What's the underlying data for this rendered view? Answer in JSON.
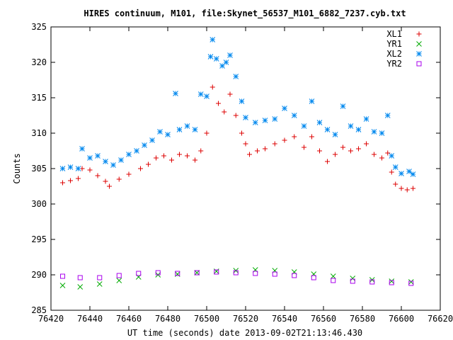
{
  "chart_data": {
    "type": "scatter",
    "title": "HIRES continuum, M101, file:Skynet_56537_M101_6882_7237.cyb.txt",
    "xlabel": "UT time (seconds) date 2013-09-02T21:13:46.430",
    "ylabel": "Counts",
    "xlim": [
      76420,
      76620
    ],
    "ylim": [
      285,
      325
    ],
    "xticks": [
      76420,
      76440,
      76460,
      76480,
      76500,
      76520,
      76540,
      76560,
      76580,
      76600,
      76620
    ],
    "yticks": [
      285,
      290,
      295,
      300,
      305,
      310,
      315,
      320,
      325
    ],
    "grid": false,
    "legend_position": "top-right",
    "series": [
      {
        "name": "XL1",
        "marker": "plus",
        "color": "#dd0000",
        "points": [
          [
            76426,
            303.0
          ],
          [
            76430,
            303.3
          ],
          [
            76434,
            303.6
          ],
          [
            76436,
            305.0
          ],
          [
            76440,
            304.8
          ],
          [
            76444,
            304.0
          ],
          [
            76448,
            303.2
          ],
          [
            76450,
            302.5
          ],
          [
            76455,
            303.5
          ],
          [
            76460,
            304.2
          ],
          [
            76466,
            305.0
          ],
          [
            76470,
            305.6
          ],
          [
            76474,
            306.5
          ],
          [
            76478,
            306.8
          ],
          [
            76482,
            306.2
          ],
          [
            76486,
            307.0
          ],
          [
            76490,
            306.8
          ],
          [
            76494,
            306.2
          ],
          [
            76497,
            307.5
          ],
          [
            76500,
            310.0
          ],
          [
            76503,
            316.5
          ],
          [
            76506,
            314.2
          ],
          [
            76509,
            313.0
          ],
          [
            76512,
            315.5
          ],
          [
            76515,
            312.5
          ],
          [
            76518,
            310.0
          ],
          [
            76520,
            308.5
          ],
          [
            76522,
            307.0
          ],
          [
            76526,
            307.5
          ],
          [
            76530,
            307.8
          ],
          [
            76535,
            308.5
          ],
          [
            76540,
            309.0
          ],
          [
            76545,
            309.5
          ],
          [
            76550,
            308.0
          ],
          [
            76554,
            309.5
          ],
          [
            76558,
            307.5
          ],
          [
            76562,
            306.0
          ],
          [
            76566,
            307.0
          ],
          [
            76570,
            308.0
          ],
          [
            76574,
            307.5
          ],
          [
            76578,
            307.8
          ],
          [
            76582,
            308.5
          ],
          [
            76586,
            307.0
          ],
          [
            76590,
            306.5
          ],
          [
            76593,
            307.2
          ],
          [
            76595,
            304.5
          ],
          [
            76597,
            302.8
          ],
          [
            76600,
            302.2
          ],
          [
            76603,
            302.0
          ],
          [
            76606,
            302.2
          ]
        ]
      },
      {
        "name": "YR1",
        "marker": "cross",
        "color": "#00aa00",
        "points": [
          [
            76426,
            288.5
          ],
          [
            76435,
            288.3
          ],
          [
            76445,
            288.7
          ],
          [
            76455,
            289.2
          ],
          [
            76465,
            289.7
          ],
          [
            76475,
            290.0
          ],
          [
            76485,
            290.1
          ],
          [
            76495,
            290.3
          ],
          [
            76505,
            290.5
          ],
          [
            76515,
            290.6
          ],
          [
            76525,
            290.7
          ],
          [
            76535,
            290.6
          ],
          [
            76545,
            290.4
          ],
          [
            76555,
            290.1
          ],
          [
            76565,
            289.8
          ],
          [
            76575,
            289.5
          ],
          [
            76585,
            289.3
          ],
          [
            76595,
            289.1
          ],
          [
            76605,
            289.0
          ]
        ]
      },
      {
        "name": "XL2",
        "marker": "star",
        "color": "#0088ee",
        "points": [
          [
            76426,
            305.0
          ],
          [
            76430,
            305.2
          ],
          [
            76434,
            305.0
          ],
          [
            76436,
            307.8
          ],
          [
            76440,
            306.5
          ],
          [
            76444,
            306.8
          ],
          [
            76448,
            306.0
          ],
          [
            76452,
            305.5
          ],
          [
            76456,
            306.2
          ],
          [
            76460,
            307.0
          ],
          [
            76464,
            307.5
          ],
          [
            76468,
            308.3
          ],
          [
            76472,
            309.0
          ],
          [
            76476,
            310.2
          ],
          [
            76480,
            309.8
          ],
          [
            76484,
            315.6
          ],
          [
            76486,
            310.5
          ],
          [
            76490,
            311.0
          ],
          [
            76494,
            310.5
          ],
          [
            76497,
            315.5
          ],
          [
            76500,
            315.2
          ],
          [
            76502,
            320.8
          ],
          [
            76503,
            323.2
          ],
          [
            76505,
            320.5
          ],
          [
            76508,
            319.5
          ],
          [
            76510,
            320.0
          ],
          [
            76512,
            321.0
          ],
          [
            76515,
            318.0
          ],
          [
            76518,
            314.5
          ],
          [
            76520,
            312.2
          ],
          [
            76525,
            311.5
          ],
          [
            76530,
            311.8
          ],
          [
            76535,
            312.0
          ],
          [
            76540,
            313.5
          ],
          [
            76545,
            312.5
          ],
          [
            76550,
            311.0
          ],
          [
            76554,
            314.5
          ],
          [
            76558,
            311.5
          ],
          [
            76562,
            310.5
          ],
          [
            76566,
            309.8
          ],
          [
            76570,
            313.8
          ],
          [
            76574,
            311.0
          ],
          [
            76578,
            310.5
          ],
          [
            76582,
            312.0
          ],
          [
            76586,
            310.2
          ],
          [
            76590,
            310.0
          ],
          [
            76593,
            312.5
          ],
          [
            76595,
            306.8
          ],
          [
            76597,
            305.2
          ],
          [
            76600,
            304.3
          ],
          [
            76604,
            304.6
          ],
          [
            76606,
            304.2
          ]
        ]
      },
      {
        "name": "YR2",
        "marker": "square",
        "color": "#aa00ee",
        "points": [
          [
            76426,
            289.8
          ],
          [
            76435,
            289.6
          ],
          [
            76445,
            289.6
          ],
          [
            76455,
            289.9
          ],
          [
            76465,
            290.2
          ],
          [
            76475,
            290.3
          ],
          [
            76485,
            290.2
          ],
          [
            76495,
            290.3
          ],
          [
            76505,
            290.4
          ],
          [
            76515,
            290.3
          ],
          [
            76525,
            290.2
          ],
          [
            76535,
            290.1
          ],
          [
            76545,
            289.9
          ],
          [
            76555,
            289.6
          ],
          [
            76565,
            289.2
          ],
          [
            76575,
            289.1
          ],
          [
            76585,
            289.0
          ],
          [
            76595,
            288.9
          ],
          [
            76605,
            288.8
          ]
        ]
      }
    ]
  }
}
